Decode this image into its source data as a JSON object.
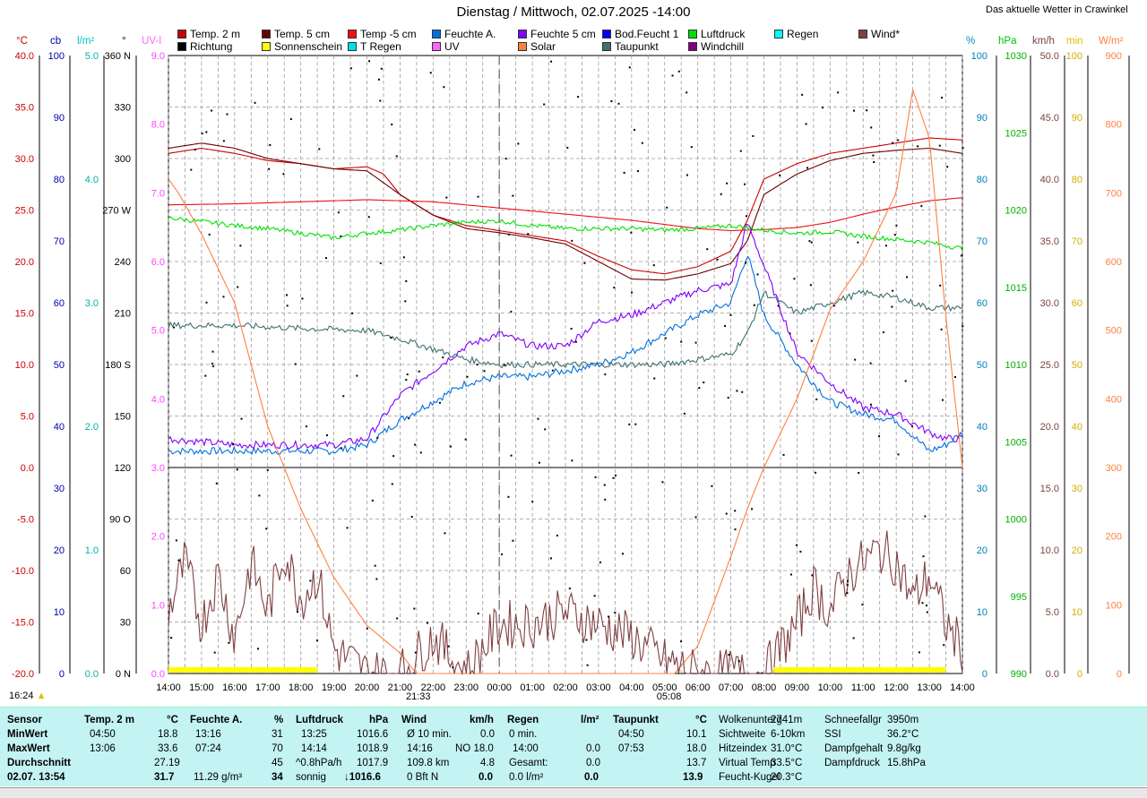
{
  "title": "Dienstag / Mittwoch, 02.07.2025  -14:00",
  "site_label": "Das aktuelle Wetter in Crawinkel",
  "legend": [
    {
      "label": "Temp. 2 m",
      "color": "#cc0000"
    },
    {
      "label": "Temp. 5 cm",
      "color": "#6b0000"
    },
    {
      "label": "Temp -5 cm",
      "color": "#ee1111"
    },
    {
      "label": "Feuchte A.",
      "color": "#0070e0"
    },
    {
      "label": "Feuchte 5 cm",
      "color": "#8000ff"
    },
    {
      "label": "Bod.Feucht 1",
      "color": "#0000ff"
    },
    {
      "label": "Luftdruck",
      "color": "#00e000"
    },
    {
      "label": "Regen",
      "color": "#00ffff"
    },
    {
      "label": "Wind*",
      "color": "#804040"
    },
    {
      "label": "Richtung",
      "color": "#000000"
    },
    {
      "label": "Sonnenschein",
      "color": "#ffff00"
    },
    {
      "label": "T Regen",
      "color": "#00e0e0"
    },
    {
      "label": "UV",
      "color": "#ff66ff"
    },
    {
      "label": "Solar",
      "color": "#ff8040"
    },
    {
      "label": "Taupunkt",
      "color": "#407070"
    },
    {
      "label": "Windchill",
      "color": "#800080"
    }
  ],
  "axis_units": {
    "temp": "°C",
    "cb": "cb",
    "lm2": "l/m²",
    "dir": "°",
    "uv": "UV-I",
    "hum": "%",
    "hpa": "hPa",
    "kmh": "km/h",
    "min": "min",
    "wm2": "W/m²"
  },
  "axes": {
    "temp_ticks": [
      "40.0",
      "35.0",
      "30.0",
      "25.0",
      "20.0",
      "15.0",
      "10.0",
      "5.0",
      "0.0",
      "-5.0",
      "-10.0",
      "-15.0",
      "-20.0"
    ],
    "cb_ticks": [
      "100",
      "90",
      "80",
      "70",
      "60",
      "50",
      "40",
      "30",
      "20",
      "10",
      "0"
    ],
    "lm2_ticks": [
      "5.0",
      "4.0",
      "3.0",
      "2.0",
      "1.0",
      "0.0"
    ],
    "dir_ticks": [
      "360 N",
      "330",
      "300",
      "270 W",
      "240",
      "210",
      "180 S",
      "150",
      "120",
      "90 O",
      "60",
      "30",
      "0 N"
    ],
    "uv_ticks": [
      "9.0",
      "8.0",
      "7.0",
      "6.0",
      "5.0",
      "4.0",
      "3.0",
      "2.0",
      "1.0",
      "0.0"
    ],
    "hum_ticks": [
      "100",
      "90",
      "80",
      "70",
      "60",
      "50",
      "40",
      "30",
      "20",
      "10",
      "0"
    ],
    "hpa_ticks": [
      "1030",
      "1025",
      "1020",
      "1015",
      "1010",
      "1005",
      "1000",
      "995",
      "990"
    ],
    "kmh_ticks": [
      "50.0",
      "45.0",
      "40.0",
      "35.0",
      "30.0",
      "25.0",
      "20.0",
      "15.0",
      "10.0",
      "5.0",
      "0.0"
    ],
    "min_ticks": [
      "100",
      "90",
      "80",
      "70",
      "60",
      "50",
      "40",
      "30",
      "20",
      "10",
      "0"
    ],
    "wm2_ticks": [
      "900",
      "800",
      "700",
      "600",
      "500",
      "400",
      "300",
      "200",
      "100",
      "0"
    ],
    "time_ticks": [
      "14:00",
      "15:00",
      "16:00",
      "17:00",
      "18:00",
      "19:00",
      "20:00",
      "21:00",
      "22:00",
      "23:00",
      "00:00",
      "01:00",
      "02:00",
      "03:00",
      "04:00",
      "05:00",
      "06:00",
      "07:00",
      "08:00",
      "09:00",
      "10:00",
      "11:00",
      "12:00",
      "13:00",
      "14:00"
    ],
    "sunset": "21:33",
    "sunrise": "05:08",
    "sunshine_marker": "16:24"
  },
  "chart_data": {
    "type": "line",
    "x_unit": "hours since 14:00 (Dienstag)",
    "ylim_temp": [
      -20,
      40
    ],
    "ylim_hum": [
      0,
      100
    ],
    "ylim_hpa": [
      990,
      1030
    ],
    "ylim_wm2": [
      0,
      900
    ],
    "series": [
      {
        "name": "Temp. 2 m",
        "axis": "temp",
        "x": [
          0,
          1,
          2,
          3,
          4,
          5,
          6,
          6.5,
          7,
          8,
          9,
          10,
          11,
          12,
          13,
          14,
          15,
          16,
          17,
          17.5,
          18,
          19,
          20,
          21,
          22,
          23,
          24
        ],
        "y": [
          30.5,
          31,
          30.5,
          29.8,
          29.5,
          29,
          29.2,
          28.5,
          26.5,
          24.5,
          23.5,
          23,
          22.5,
          22,
          20.5,
          19.2,
          18.8,
          19.5,
          21,
          24,
          28,
          29.5,
          30.5,
          31,
          31.5,
          32,
          31.8
        ]
      },
      {
        "name": "Temp. 5 cm",
        "axis": "temp",
        "x": [
          0,
          1,
          2,
          3,
          4,
          5,
          6,
          7,
          8,
          9,
          10,
          11,
          12,
          13,
          14,
          15,
          16,
          17,
          17.5,
          18,
          19,
          20,
          21,
          22,
          23,
          24
        ],
        "y": [
          31,
          31.5,
          31,
          30,
          29.5,
          29,
          28.8,
          26.5,
          24.5,
          23.2,
          22.8,
          22.3,
          21.7,
          20,
          18.3,
          18.2,
          18.8,
          19.8,
          22,
          26.5,
          28.5,
          29.8,
          30.5,
          30.8,
          31,
          30.5
        ]
      },
      {
        "name": "Temp -5 cm",
        "axis": "temp",
        "x": [
          0,
          2,
          4,
          6,
          8,
          10,
          12,
          14,
          16,
          17,
          18,
          19,
          20,
          21,
          22,
          23,
          24
        ],
        "y": [
          25.5,
          25.6,
          25.8,
          26,
          25.8,
          25.2,
          24.6,
          24,
          23.2,
          23,
          23.1,
          23.3,
          23.8,
          24.6,
          25.3,
          25.9,
          26.2
        ]
      },
      {
        "name": "Feuchte A.",
        "axis": "hum",
        "x": [
          0,
          2,
          4,
          5,
          6,
          7,
          8,
          9,
          10,
          11,
          12,
          13,
          14,
          15,
          16,
          17,
          17.5,
          18,
          19,
          20,
          21,
          22,
          23,
          23.5,
          24
        ],
        "y": [
          36,
          36,
          36,
          36,
          37,
          41,
          44,
          47,
          48,
          48,
          49,
          50,
          52,
          55,
          58,
          60,
          68,
          58,
          50,
          44,
          42,
          41,
          36,
          37,
          39
        ]
      },
      {
        "name": "Feuchte 5 cm",
        "axis": "hum",
        "x": [
          0,
          2,
          4,
          5,
          6,
          7,
          8,
          9,
          10,
          11,
          12,
          13,
          14,
          15,
          16,
          17,
          17.5,
          18,
          19,
          20,
          21,
          22,
          23,
          23.5,
          24
        ],
        "y": [
          38,
          37,
          37,
          37,
          38,
          45,
          49,
          53,
          55,
          53,
          53,
          57,
          58,
          60,
          62,
          63,
          73,
          66,
          52,
          47,
          43,
          42,
          39,
          38,
          38
        ]
      },
      {
        "name": "Luftdruck",
        "axis": "hpa",
        "x": [
          0,
          2,
          3,
          4,
          5,
          6,
          7,
          8,
          9,
          10,
          11,
          12,
          13,
          14,
          15,
          16,
          17,
          18,
          19,
          20,
          21,
          22,
          23,
          24
        ],
        "y": [
          1019.5,
          1019,
          1018.8,
          1018.5,
          1018.2,
          1018.5,
          1018.7,
          1019,
          1019.2,
          1019.3,
          1019,
          1018.8,
          1018.8,
          1018.8,
          1018.7,
          1018.8,
          1019,
          1018.7,
          1018.5,
          1018.6,
          1018.3,
          1018.1,
          1017.9,
          1017.5
        ]
      },
      {
        "name": "Taupunkt",
        "axis": "temp",
        "x": [
          0,
          2,
          4,
          6,
          7,
          8,
          9,
          10,
          11,
          12,
          13,
          14,
          15,
          16,
          17,
          17.5,
          18,
          19,
          20,
          21,
          22,
          23,
          24
        ],
        "y": [
          13.8,
          13.8,
          13.5,
          13.3,
          12.5,
          11.5,
          10.5,
          10,
          10,
          10,
          10,
          10,
          10,
          10.5,
          11,
          13,
          17,
          15,
          16,
          17,
          16.5,
          15.5,
          15.5
        ]
      },
      {
        "name": "Solar",
        "axis": "wm2",
        "x": [
          0,
          0.3,
          1,
          2,
          3,
          3.5,
          4,
          5,
          6,
          7,
          7.5,
          8,
          9,
          10,
          11,
          12,
          13,
          14,
          15,
          15.3,
          16,
          17,
          17.5,
          18,
          19,
          20,
          21,
          22,
          22.5,
          23,
          23.5,
          24
        ],
        "y": [
          720,
          700,
          640,
          540,
          360,
          300,
          240,
          140,
          70,
          30,
          0,
          0,
          0,
          0,
          0,
          0,
          0,
          0,
          0,
          0,
          40,
          170,
          240,
          300,
          400,
          530,
          600,
          700,
          850,
          780,
          520,
          300
        ]
      },
      {
        "name": "Wind*",
        "axis": "kmh",
        "x": [
          0,
          0.5,
          1,
          1.5,
          2,
          2.5,
          3,
          3.5,
          4,
          4.5,
          5,
          6,
          7,
          8,
          9,
          10,
          11,
          12,
          13,
          14,
          15,
          16,
          17,
          18,
          19,
          19.5,
          20,
          20.5,
          21,
          21.5,
          22,
          22.5,
          23,
          23.5,
          24
        ],
        "y": [
          5,
          9,
          4,
          8,
          3,
          9,
          5,
          10,
          6,
          8,
          2,
          0,
          0,
          3,
          0,
          4,
          4,
          5,
          4,
          3,
          1,
          0,
          0,
          0,
          4,
          7,
          5,
          8,
          9,
          10,
          9,
          6,
          8,
          4,
          2
        ]
      }
    ]
  },
  "panel": {
    "sensor": {
      "h": "Sensor",
      "min": "MinWert",
      "max": "MaxWert",
      "avg": "Durchschnitt",
      "now": "02.07. 13:54"
    },
    "temp": {
      "h": "Temp. 2 m",
      "u": "°C",
      "min_t": "04:50",
      "min_v": "18.8",
      "max_t": "13:06",
      "max_v": "33.6",
      "avg": "27.19",
      "now": "31.7"
    },
    "hum": {
      "h": "Feuchte A.",
      "u": "%",
      "min_t": "13:16",
      "min_v": "31",
      "max_t": "07:24",
      "max_v": "70",
      "avg": "45",
      "abs": "11.29 g/m³",
      "now": "34"
    },
    "press": {
      "h": "Luftdruck",
      "u": "hPa",
      "min_t": "13:25",
      "min_v": "1016.6",
      "max_t": "14:14",
      "max_v": "1018.9",
      "trend": "^0.8hPa/h",
      "avg": "1017.9",
      "state": "sonnig",
      "now": "↓1016.6"
    },
    "wind": {
      "h": "Wind",
      "u": "km/h",
      "r1a": "Ø 10 min.",
      "r1b": "0.0",
      "r2a": "14:16",
      "r2b": "NO 18.0",
      "r3a": "109.8 km",
      "r3b": "4.8",
      "r4a": "0 Bft N",
      "r4b": "0.0"
    },
    "rain": {
      "h": "Regen",
      "u": "l/m²",
      "r1a": "0 min.",
      "r2a": "14:00",
      "r2b": "0.0",
      "r3a": "Gesamt:",
      "r3b": "0.0",
      "r4a": "0.0 l/m²",
      "r4b": "0.0"
    },
    "dew": {
      "h": "Taupunkt",
      "u": "°C",
      "min_t": "04:50",
      "min_v": "10.1",
      "max_t": "07:53",
      "max_v": "18.0",
      "avg": "13.7",
      "now": "13.9"
    },
    "extra1": [
      [
        "Wolkenunterg",
        "2741m"
      ],
      [
        "Sichtweite",
        "6-10km"
      ],
      [
        "Hitzeindex",
        "31.0°C"
      ],
      [
        "Virtual Temp",
        "33.5°C"
      ],
      [
        "Feucht-Kugel",
        "20.3°C"
      ]
    ],
    "extra2": [
      [
        "Schneefallgr",
        "3950m"
      ],
      [
        "SSI",
        "36.2°C"
      ],
      [
        "Dampfgehalt",
        "9.8g/kg"
      ],
      [
        "Dampfdruck",
        "15.8hPa"
      ]
    ]
  }
}
